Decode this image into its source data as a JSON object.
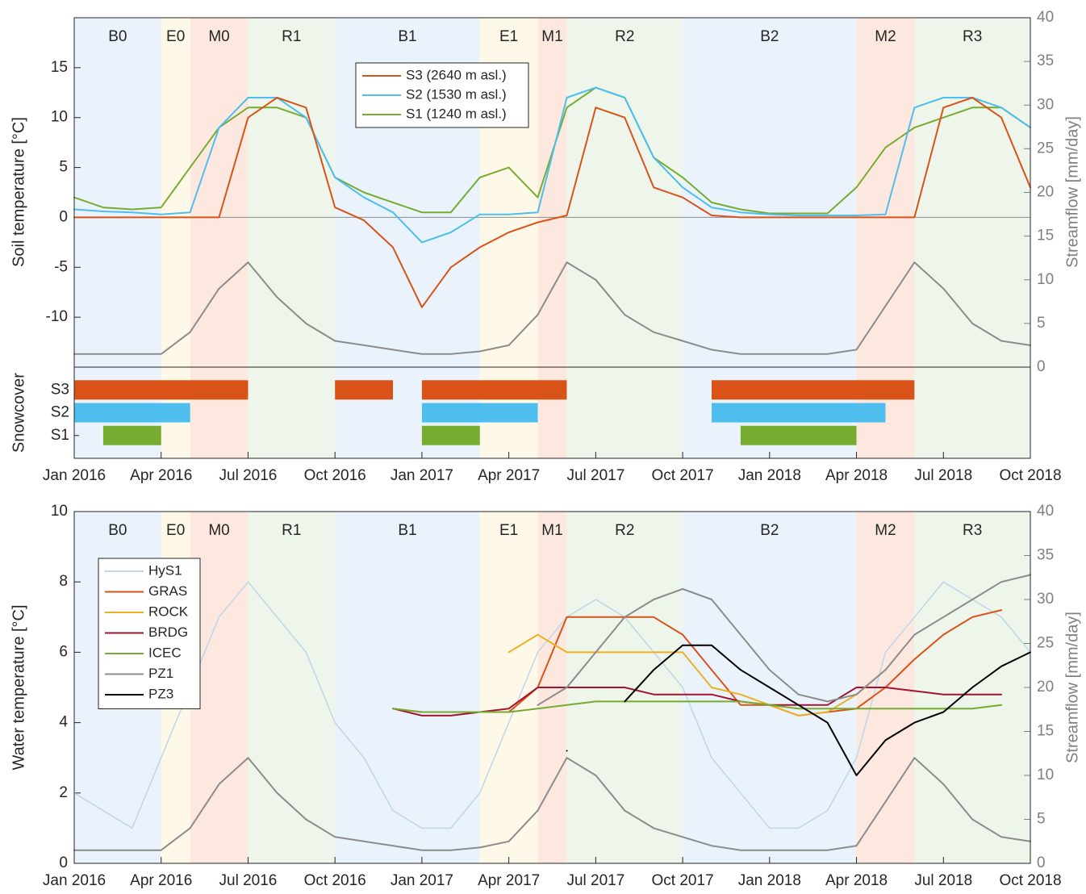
{
  "chart_data": [
    {
      "type": "line",
      "ylabel": "Soil temperature [°C]",
      "y2label": "Streamflow [mm/day]",
      "ylim": [
        -15,
        20
      ],
      "yticks": [
        -10,
        -5,
        0,
        5,
        10,
        15
      ],
      "y2lim": [
        0,
        40
      ],
      "y2ticks": [
        0,
        5,
        10,
        15,
        20,
        25,
        30,
        35,
        40
      ],
      "xlim": [
        "2016-01",
        "2018-10"
      ],
      "legend": "north",
      "periods": [
        {
          "label": "B0",
          "start": "2016-01",
          "end": "2016-04",
          "color": "#eaf2fb"
        },
        {
          "label": "E0",
          "start": "2016-04",
          "end": "2016-05",
          "color": "#fef8e8"
        },
        {
          "label": "M0",
          "start": "2016-05",
          "end": "2016-07",
          "color": "#fde8df"
        },
        {
          "label": "R1",
          "start": "2016-07",
          "end": "2016-10",
          "color": "#eef5eb"
        },
        {
          "label": "B1",
          "start": "2016-10",
          "end": "2017-03",
          "color": "#eaf2fb"
        },
        {
          "label": "E1",
          "start": "2017-03",
          "end": "2017-05",
          "color": "#fef8e8"
        },
        {
          "label": "M1",
          "start": "2017-05",
          "end": "2017-06",
          "color": "#fde8df"
        },
        {
          "label": "R2",
          "start": "2017-06",
          "end": "2017-10",
          "color": "#eef5eb"
        },
        {
          "label": "B2",
          "start": "2017-10",
          "end": "2018-04",
          "color": "#eaf2fb"
        },
        {
          "label": "M2",
          "start": "2018-04",
          "end": "2018-06",
          "color": "#fde8df"
        },
        {
          "label": "R3",
          "start": "2018-06",
          "end": "2018-10",
          "color": "#eef5eb"
        }
      ],
      "x": [
        "2016-01",
        "2016-02",
        "2016-03",
        "2016-04",
        "2016-05",
        "2016-06",
        "2016-07",
        "2016-08",
        "2016-09",
        "2016-10",
        "2016-11",
        "2016-12",
        "2017-01",
        "2017-02",
        "2017-03",
        "2017-04",
        "2017-05",
        "2017-06",
        "2017-07",
        "2017-08",
        "2017-09",
        "2017-10",
        "2017-11",
        "2017-12",
        "2018-01",
        "2018-02",
        "2018-03",
        "2018-04",
        "2018-05",
        "2018-06",
        "2018-07",
        "2018-08",
        "2018-09",
        "2018-10"
      ],
      "series": [
        {
          "color": "#8c8c8c",
          "axis": "y2",
          "values": [
            1.5,
            1.5,
            1.5,
            1.5,
            4,
            9,
            12,
            8,
            5,
            3,
            2.5,
            2,
            1.5,
            1.5,
            1.8,
            2.5,
            6,
            12,
            10,
            6,
            4,
            3,
            2,
            1.5,
            1.5,
            1.5,
            1.5,
            2,
            7,
            12,
            9,
            5,
            3,
            2.5
          ]
        },
        {
          "name": "S1 (1240 m asl.)",
          "color": "#77ac30",
          "values": [
            2,
            1,
            0.8,
            1,
            5,
            9,
            11,
            11,
            10,
            4,
            2.5,
            1.5,
            0.5,
            0.5,
            4,
            5,
            2,
            11,
            13,
            12,
            6,
            4,
            1.5,
            0.8,
            0.4,
            0.4,
            0.4,
            3,
            7,
            9,
            10,
            11,
            11,
            9
          ]
        },
        {
          "name": "S2 (1530 m asl.)",
          "color": "#4dbeee",
          "values": [
            0.8,
            0.6,
            0.5,
            0.3,
            0.5,
            9,
            12,
            12,
            10,
            4,
            2,
            0.5,
            -2.5,
            -1.5,
            0.3,
            0.3,
            0.5,
            12,
            13,
            12,
            6,
            3,
            1,
            0.5,
            0.3,
            0.2,
            0.2,
            0.2,
            0.3,
            11,
            12,
            12,
            11,
            9
          ]
        },
        {
          "name": "S3 (2640 m asl.)",
          "color": "#d95319",
          "values": [
            0,
            0,
            0,
            0,
            0,
            0,
            10,
            12,
            11,
            1,
            -0.3,
            -3,
            -9,
            -5,
            -3,
            -1.5,
            -0.5,
            0.2,
            11,
            10,
            3,
            2,
            0.2,
            0,
            0,
            0,
            0,
            0,
            0,
            0,
            11,
            12,
            10,
            3
          ]
        }
      ]
    },
    {
      "type": "timeline",
      "ylabel": "Snowcover",
      "xlim": [
        "2016-01",
        "2018-10"
      ],
      "xticks": [
        {
          "value": "2016-01",
          "label": "Jan 2016"
        },
        {
          "value": "2016-04",
          "label": "Apr 2016"
        },
        {
          "value": "2016-07",
          "label": "Jul 2016"
        },
        {
          "value": "2016-10",
          "label": "Oct 2016"
        },
        {
          "value": "2017-01",
          "label": "Jan 2017"
        },
        {
          "value": "2017-04",
          "label": "Apr 2017"
        },
        {
          "value": "2017-07",
          "label": "Jul 2017"
        },
        {
          "value": "2017-10",
          "label": "Oct 2017"
        },
        {
          "value": "2018-01",
          "label": "Jan 2018"
        },
        {
          "value": "2018-04",
          "label": "Apr 2018"
        },
        {
          "value": "2018-07",
          "label": "Jul 2018"
        },
        {
          "value": "2018-10",
          "label": "Oct 2018"
        }
      ],
      "categories": [
        "S3",
        "S2",
        "S1"
      ],
      "series": [
        {
          "color": "#d95319",
          "intervals": [
            [
              "2016-01",
              "2016-07"
            ],
            [
              "2016-10",
              "2016-12"
            ],
            [
              "2017-01",
              "2017-06"
            ],
            [
              "2017-11",
              "2018-06"
            ]
          ]
        },
        {
          "color": "#4dbeee",
          "intervals": [
            [
              "2016-01",
              "2016-05"
            ],
            [
              "2017-01",
              "2017-05"
            ],
            [
              "2017-11",
              "2018-05"
            ]
          ]
        },
        {
          "color": "#77ac30",
          "intervals": [
            [
              "2016-02",
              "2016-04"
            ],
            [
              "2017-01",
              "2017-03"
            ],
            [
              "2017-12",
              "2018-04"
            ]
          ]
        }
      ]
    },
    {
      "type": "line",
      "ylabel": "Water temperature [°C]",
      "y2label": "Streamflow [mm/day]",
      "ylim": [
        0,
        10
      ],
      "yticks": [
        0,
        2,
        4,
        6,
        8,
        10
      ],
      "y2lim": [
        0,
        40
      ],
      "y2ticks": [
        0,
        5,
        10,
        15,
        20,
        25,
        30,
        35,
        40
      ],
      "xlim": [
        "2016-01",
        "2018-10"
      ],
      "xticks": [
        {
          "value": "2016-01",
          "label": "Jan 2016"
        },
        {
          "value": "2016-04",
          "label": "Apr 2016"
        },
        {
          "value": "2016-07",
          "label": "Jul 2016"
        },
        {
          "value": "2016-10",
          "label": "Oct 2016"
        },
        {
          "value": "2017-01",
          "label": "Jan 2017"
        },
        {
          "value": "2017-04",
          "label": "Apr 2017"
        },
        {
          "value": "2017-07",
          "label": "Jul 2017"
        },
        {
          "value": "2017-10",
          "label": "Oct 2017"
        },
        {
          "value": "2018-01",
          "label": "Jan 2018"
        },
        {
          "value": "2018-04",
          "label": "Apr 2018"
        },
        {
          "value": "2018-07",
          "label": "Jul 2018"
        },
        {
          "value": "2018-10",
          "label": "Oct 2018"
        }
      ],
      "legend": "west",
      "periods": [
        {
          "label": "B0",
          "start": "2016-01",
          "end": "2016-04",
          "color": "#eaf2fb"
        },
        {
          "label": "E0",
          "start": "2016-04",
          "end": "2016-05",
          "color": "#fef8e8"
        },
        {
          "label": "M0",
          "start": "2016-05",
          "end": "2016-07",
          "color": "#fde8df"
        },
        {
          "label": "R1",
          "start": "2016-07",
          "end": "2016-10",
          "color": "#eef5eb"
        },
        {
          "label": "B1",
          "start": "2016-10",
          "end": "2017-03",
          "color": "#eaf2fb"
        },
        {
          "label": "E1",
          "start": "2017-03",
          "end": "2017-05",
          "color": "#fef8e8"
        },
        {
          "label": "M1",
          "start": "2017-05",
          "end": "2017-06",
          "color": "#fde8df"
        },
        {
          "label": "R2",
          "start": "2017-06",
          "end": "2017-10",
          "color": "#eef5eb"
        },
        {
          "label": "B2",
          "start": "2017-10",
          "end": "2018-04",
          "color": "#eaf2fb"
        },
        {
          "label": "M2",
          "start": "2018-04",
          "end": "2018-06",
          "color": "#fde8df"
        },
        {
          "label": "R3",
          "start": "2018-06",
          "end": "2018-10",
          "color": "#eef5eb"
        }
      ],
      "x": [
        "2016-01",
        "2016-02",
        "2016-03",
        "2016-04",
        "2016-05",
        "2016-06",
        "2016-07",
        "2016-08",
        "2016-09",
        "2016-10",
        "2016-11",
        "2016-12",
        "2017-01",
        "2017-02",
        "2017-03",
        "2017-04",
        "2017-05",
        "2017-06",
        "2017-07",
        "2017-08",
        "2017-09",
        "2017-10",
        "2017-11",
        "2017-12",
        "2018-01",
        "2018-02",
        "2018-03",
        "2018-04",
        "2018-05",
        "2018-06",
        "2018-07",
        "2018-08",
        "2018-09",
        "2018-10"
      ],
      "series": [
        {
          "name": "HyS1",
          "color": "#bfd6e8",
          "values": [
            2,
            1.5,
            1,
            3,
            5,
            7,
            8,
            7,
            6,
            4,
            3,
            1.5,
            1,
            1,
            2,
            4,
            6,
            7,
            7.5,
            7,
            6,
            5,
            3,
            2,
            1,
            1,
            1.5,
            3,
            6,
            7,
            8,
            7.5,
            7,
            6
          ]
        },
        {
          "color": "#8c8c8c",
          "axis": "y2",
          "values": [
            1.5,
            1.5,
            1.5,
            1.5,
            4,
            9,
            12,
            8,
            5,
            3,
            2.5,
            2,
            1.5,
            1.5,
            1.8,
            2.5,
            6,
            12,
            10,
            6,
            4,
            3,
            2,
            1.5,
            1.5,
            1.5,
            1.5,
            2,
            7,
            12,
            9,
            5,
            3,
            2.5
          ]
        },
        {
          "name": "GRAS",
          "color": "#d95319",
          "values": [
            null,
            null,
            null,
            null,
            null,
            null,
            null,
            null,
            null,
            null,
            null,
            4.4,
            4.3,
            4.3,
            4.3,
            4.3,
            5,
            7,
            7,
            7,
            7,
            6.5,
            5.5,
            4.5,
            4.5,
            4.2,
            4.3,
            4.4,
            5,
            5.8,
            6.5,
            7,
            7.2,
            null
          ]
        },
        {
          "name": "ROCK",
          "color": "#edb120",
          "values": [
            null,
            null,
            null,
            null,
            null,
            null,
            null,
            null,
            null,
            null,
            null,
            null,
            null,
            null,
            null,
            6,
            6.5,
            6,
            6,
            6,
            6,
            6,
            5,
            4.8,
            4.5,
            4.2,
            4.3,
            4.8,
            null,
            null,
            null,
            null,
            null,
            null
          ]
        },
        {
          "name": "BRDG",
          "color": "#a2142f",
          "values": [
            null,
            null,
            null,
            null,
            null,
            null,
            null,
            null,
            null,
            null,
            null,
            4.4,
            4.2,
            4.2,
            4.3,
            4.4,
            5,
            5,
            5,
            5,
            4.8,
            4.8,
            4.8,
            4.6,
            4.5,
            4.5,
            4.5,
            5,
            5,
            4.9,
            4.8,
            4.8,
            4.8,
            null
          ]
        },
        {
          "name": "ICEC",
          "color": "#77ac30",
          "values": [
            null,
            null,
            null,
            null,
            null,
            null,
            null,
            null,
            null,
            null,
            null,
            4.4,
            4.3,
            4.3,
            4.3,
            4.3,
            4.4,
            4.5,
            4.6,
            4.6,
            4.6,
            4.6,
            4.6,
            4.6,
            4.5,
            4.4,
            4.4,
            4.4,
            4.4,
            4.4,
            4.4,
            4.4,
            4.5,
            null
          ]
        },
        {
          "name": "PZ1",
          "color": "#8c8c8c",
          "values": [
            null,
            null,
            null,
            null,
            null,
            null,
            null,
            null,
            null,
            null,
            null,
            null,
            null,
            null,
            null,
            null,
            4.5,
            5,
            6,
            7,
            7.5,
            7.8,
            7.5,
            6.5,
            5.5,
            4.8,
            4.6,
            4.8,
            5.5,
            6.5,
            7,
            7.5,
            8,
            8.2
          ]
        },
        {
          "name": "PZ3",
          "color": "#000000",
          "values": [
            null,
            null,
            null,
            null,
            null,
            null,
            null,
            null,
            null,
            null,
            null,
            null,
            null,
            null,
            null,
            null,
            null,
            3.2,
            null,
            4.6,
            5.5,
            6.2,
            6.2,
            5.5,
            5,
            4.5,
            4,
            2.5,
            3.5,
            4,
            4.3,
            5,
            5.6,
            6
          ]
        }
      ]
    }
  ]
}
